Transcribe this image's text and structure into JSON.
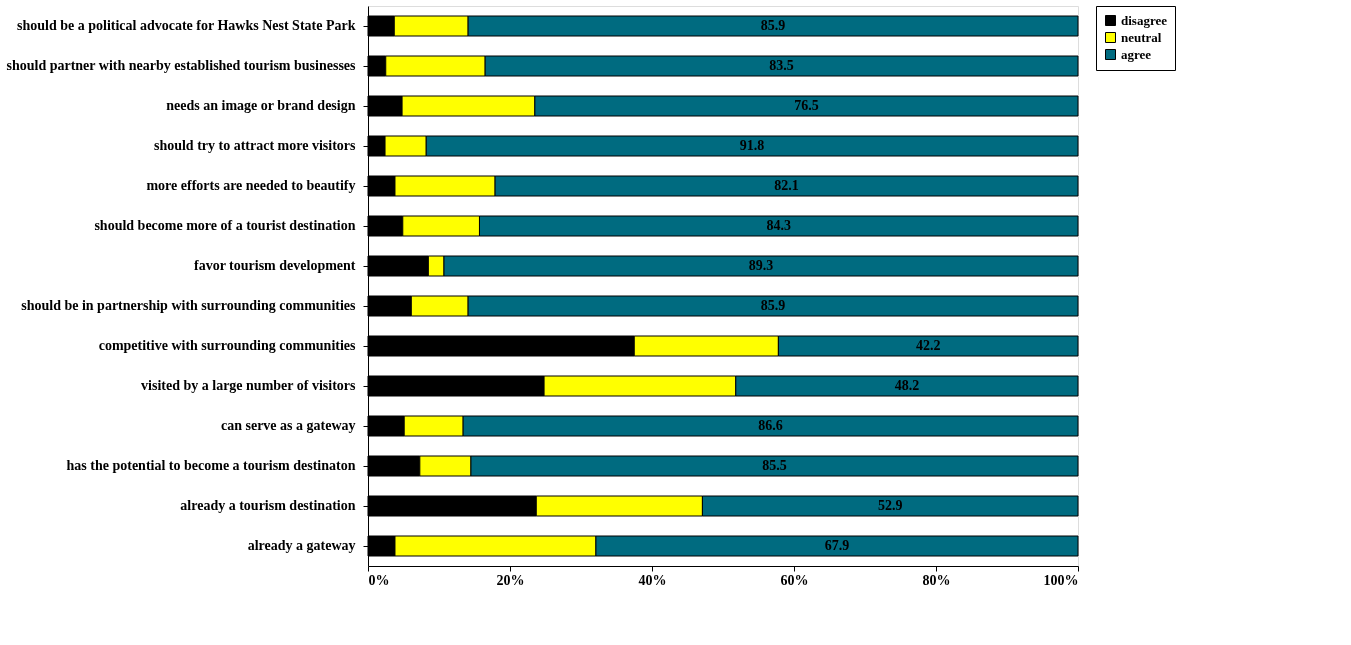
{
  "chart_data": {
    "type": "bar",
    "orientation": "horizontal",
    "stacked": true,
    "categories": [
      "should be a political advocate for Hawks Nest State Park",
      "should partner with nearby established tourism businesses",
      "needs an image or brand design",
      "should try to attract more visitors",
      "more efforts are needed to beautify",
      "should become more of a tourist destination",
      "favor tourism development",
      "should be in partnership with surrounding communities",
      "competitive with surrounding communities",
      "visited by a large number of visitors",
      "can serve as a gateway",
      "has the potential to become a tourism destinaton",
      "already a tourism destination",
      "already a gateway"
    ],
    "series": [
      {
        "name": "disagree",
        "color": "#000000",
        "values": [
          3.7,
          2.5,
          4.8,
          2.4,
          3.8,
          4.9,
          8.5,
          6.1,
          37.5,
          24.8,
          5.1,
          7.3,
          23.7,
          3.8
        ]
      },
      {
        "name": "neutral",
        "color": "#ffff00",
        "values": [
          10.4,
          14.0,
          18.7,
          5.8,
          14.1,
          10.8,
          2.2,
          8.0,
          20.3,
          27.0,
          8.3,
          7.2,
          23.4,
          28.3
        ]
      },
      {
        "name": "agree",
        "color": "#006b80",
        "values": [
          85.9,
          83.5,
          76.5,
          91.8,
          82.1,
          84.3,
          89.3,
          85.9,
          42.2,
          48.2,
          86.6,
          85.5,
          52.9,
          67.9
        ],
        "value_labels": [
          "85.9",
          "83.5",
          "76.5",
          "91.8",
          "82.1",
          "84.3",
          "89.3",
          "85.9",
          "42.2",
          "48.2",
          "86.6",
          "85.5",
          "52.9",
          "67.9"
        ]
      }
    ],
    "xlim": [
      0,
      100
    ],
    "xticks": [
      {
        "value": 0,
        "label": "0%"
      },
      {
        "value": 20,
        "label": "20%"
      },
      {
        "value": 40,
        "label": "40%"
      },
      {
        "value": 60,
        "label": "60%"
      },
      {
        "value": 80,
        "label": "80%"
      },
      {
        "value": 100,
        "label": "100%"
      }
    ],
    "grid": false,
    "legend": "right"
  }
}
